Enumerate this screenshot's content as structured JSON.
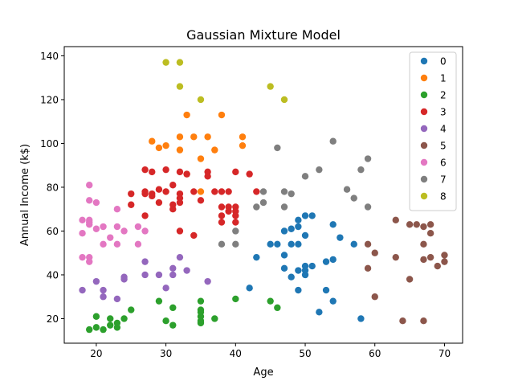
{
  "chart_data": {
    "type": "scatter",
    "title": "Gaussian Mixture Model",
    "xlabel": "Age",
    "ylabel": "Annual Income (k$)",
    "xlim": [
      15.4,
      72.6
    ],
    "ylim": [
      8.8,
      144.2
    ],
    "xticks": [
      20,
      30,
      40,
      50,
      60,
      70
    ],
    "yticks": [
      20,
      40,
      60,
      80,
      100,
      120,
      140
    ],
    "grid": false,
    "legend_position": "top-right",
    "series": [
      {
        "name": "0",
        "color": "#1f77b4",
        "points": [
          [
            43,
            48
          ],
          [
            45,
            54
          ],
          [
            46,
            54
          ],
          [
            47,
            60
          ],
          [
            47,
            49
          ],
          [
            47,
            43
          ],
          [
            48,
            61
          ],
          [
            48,
            39
          ],
          [
            49,
            54
          ],
          [
            49,
            65
          ],
          [
            49,
            62
          ],
          [
            49,
            42
          ],
          [
            49,
            33
          ],
          [
            50,
            67
          ],
          [
            50,
            58
          ],
          [
            50,
            44
          ],
          [
            50,
            40
          ],
          [
            51,
            67
          ],
          [
            51,
            44
          ],
          [
            52,
            23
          ],
          [
            53,
            46
          ],
          [
            53,
            33
          ],
          [
            54,
            63
          ],
          [
            54,
            47
          ],
          [
            54,
            28
          ],
          [
            55,
            57
          ],
          [
            57,
            54
          ],
          [
            58,
            20
          ],
          [
            48,
            54
          ],
          [
            50,
            42
          ],
          [
            42,
            34
          ]
        ]
      },
      {
        "name": "1",
        "color": "#ff7f0e",
        "points": [
          [
            28,
            101
          ],
          [
            29,
            98
          ],
          [
            30,
            99
          ],
          [
            32,
            103
          ],
          [
            32,
            97
          ],
          [
            33,
            113
          ],
          [
            34,
            103
          ],
          [
            35,
            93
          ],
          [
            35,
            78
          ],
          [
            36,
            103
          ],
          [
            37,
            97
          ],
          [
            38,
            113
          ],
          [
            41,
            103
          ],
          [
            41,
            99
          ],
          [
            33,
            86
          ]
        ]
      },
      {
        "name": "2",
        "color": "#2ca02c",
        "points": [
          [
            19,
            15
          ],
          [
            20,
            16
          ],
          [
            20,
            21
          ],
          [
            21,
            15
          ],
          [
            22,
            17
          ],
          [
            22,
            20
          ],
          [
            23,
            16
          ],
          [
            23,
            18
          ],
          [
            24,
            20
          ],
          [
            25,
            24
          ],
          [
            29,
            28
          ],
          [
            30,
            19
          ],
          [
            31,
            17
          ],
          [
            31,
            25
          ],
          [
            35,
            28
          ],
          [
            35,
            24
          ],
          [
            35,
            23
          ],
          [
            35,
            21
          ],
          [
            35,
            19
          ],
          [
            35,
            18
          ],
          [
            37,
            20
          ],
          [
            40,
            29
          ],
          [
            45,
            28
          ],
          [
            46,
            25
          ]
        ]
      },
      {
        "name": "3",
        "color": "#d62728",
        "points": [
          [
            25,
            77
          ],
          [
            25,
            72
          ],
          [
            27,
            88
          ],
          [
            27,
            78
          ],
          [
            27,
            67
          ],
          [
            28,
            87
          ],
          [
            28,
            77
          ],
          [
            28,
            76
          ],
          [
            29,
            79
          ],
          [
            29,
            73
          ],
          [
            30,
            88
          ],
          [
            30,
            78
          ],
          [
            31,
            81
          ],
          [
            31,
            72
          ],
          [
            31,
            70
          ],
          [
            32,
            87
          ],
          [
            32,
            77
          ],
          [
            32,
            75
          ],
          [
            32,
            73
          ],
          [
            32,
            60
          ],
          [
            33,
            86
          ],
          [
            34,
            78
          ],
          [
            34,
            58
          ],
          [
            35,
            74
          ],
          [
            36,
            87
          ],
          [
            36,
            85
          ],
          [
            37,
            78
          ],
          [
            38,
            78
          ],
          [
            38,
            71
          ],
          [
            38,
            67
          ],
          [
            38,
            64
          ],
          [
            39,
            78
          ],
          [
            39,
            71
          ],
          [
            39,
            69
          ],
          [
            40,
            87
          ],
          [
            40,
            71
          ],
          [
            40,
            69
          ],
          [
            40,
            67
          ],
          [
            40,
            64
          ],
          [
            42,
            86
          ],
          [
            43,
            78
          ],
          [
            27,
            77
          ]
        ]
      },
      {
        "name": "4",
        "color": "#9467bd",
        "points": [
          [
            18,
            33
          ],
          [
            20,
            37
          ],
          [
            21,
            33
          ],
          [
            21,
            30
          ],
          [
            23,
            29
          ],
          [
            24,
            39
          ],
          [
            24,
            38
          ],
          [
            27,
            46
          ],
          [
            27,
            40
          ],
          [
            29,
            40
          ],
          [
            30,
            34
          ],
          [
            31,
            43
          ],
          [
            31,
            40
          ],
          [
            32,
            48
          ],
          [
            33,
            42
          ],
          [
            36,
            37
          ]
        ]
      },
      {
        "name": "5",
        "color": "#8c564b",
        "points": [
          [
            59,
            54
          ],
          [
            59,
            43
          ],
          [
            60,
            50
          ],
          [
            60,
            30
          ],
          [
            63,
            65
          ],
          [
            63,
            48
          ],
          [
            65,
            63
          ],
          [
            65,
            38
          ],
          [
            66,
            63
          ],
          [
            67,
            62
          ],
          [
            67,
            54
          ],
          [
            67,
            47
          ],
          [
            67,
            19
          ],
          [
            68,
            63
          ],
          [
            68,
            59
          ],
          [
            68,
            48
          ],
          [
            69,
            44
          ],
          [
            70,
            49
          ],
          [
            70,
            46
          ],
          [
            64,
            19
          ]
        ]
      },
      {
        "name": "6",
        "color": "#e377c2",
        "points": [
          [
            18,
            65
          ],
          [
            18,
            59
          ],
          [
            18,
            48
          ],
          [
            19,
            81
          ],
          [
            19,
            74
          ],
          [
            19,
            65
          ],
          [
            19,
            64
          ],
          [
            19,
            63
          ],
          [
            19,
            48
          ],
          [
            19,
            46
          ],
          [
            20,
            73
          ],
          [
            20,
            61
          ],
          [
            21,
            62
          ],
          [
            21,
            54
          ],
          [
            22,
            57
          ],
          [
            23,
            70
          ],
          [
            23,
            62
          ],
          [
            23,
            54
          ],
          [
            24,
            60
          ],
          [
            26,
            62
          ],
          [
            26,
            54
          ],
          [
            27,
            60
          ]
        ]
      },
      {
        "name": "7",
        "color": "#7f7f7f",
        "points": [
          [
            38,
            54
          ],
          [
            40,
            60
          ],
          [
            40,
            54
          ],
          [
            43,
            71
          ],
          [
            44,
            78
          ],
          [
            44,
            73
          ],
          [
            46,
            98
          ],
          [
            47,
            78
          ],
          [
            47,
            71
          ],
          [
            48,
            77
          ],
          [
            50,
            85
          ],
          [
            52,
            88
          ],
          [
            54,
            101
          ],
          [
            56,
            79
          ],
          [
            57,
            75
          ],
          [
            58,
            88
          ],
          [
            59,
            93
          ],
          [
            59,
            71
          ]
        ]
      },
      {
        "name": "8",
        "color": "#bcbd22",
        "points": [
          [
            30,
            137
          ],
          [
            32,
            137
          ],
          [
            32,
            126
          ],
          [
            35,
            120
          ],
          [
            45,
            126
          ],
          [
            47,
            120
          ]
        ]
      }
    ]
  }
}
